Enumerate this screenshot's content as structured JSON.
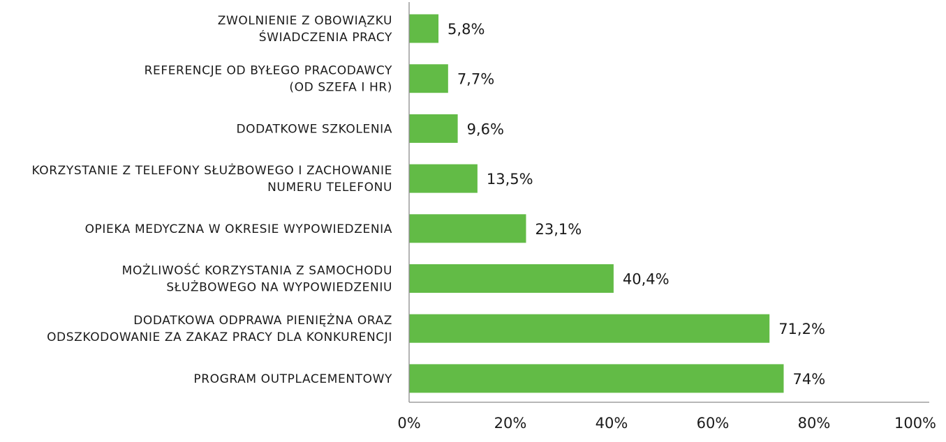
{
  "chart_data": {
    "type": "bar",
    "orientation": "horizontal",
    "categories": [
      [
        "ZWOLNIENIE Z OBOWIĄZKU",
        "ŚWIADCZENIA PRACY"
      ],
      [
        "REFERENCJE OD BYŁEGO PRACODAWCY",
        "(OD SZEFA I HR)"
      ],
      [
        "DODATKOWE SZKOLENIA"
      ],
      [
        "KORZYSTANIE Z TELEFONY SŁUŻBOWEGO I ZACHOWANIE",
        "NUMERU TELEFONU"
      ],
      [
        "OPIEKA MEDYCZNA W OKRESIE WYPOWIEDZENIA"
      ],
      [
        "MOŻLIWOŚĆ KORZYSTANIA Z SAMOCHODU",
        "SŁUŻBOWEGO NA WYPOWIEDZENIU"
      ],
      [
        "DODATKOWA ODPRAWA PIENIĘŻNA ORAZ",
        "ODSZKODOWANIE ZA ZAKAZ PRACY DLA KONKURENCJI"
      ],
      [
        "PROGRAM OUTPLACEMENTOWY"
      ]
    ],
    "values": [
      5.8,
      7.7,
      9.6,
      13.5,
      23.1,
      40.4,
      71.2,
      74
    ],
    "value_labels": [
      "5,8%",
      "7,7%",
      "9,6%",
      "13,5%",
      "23,1%",
      "40,4%",
      "71,2%",
      "74%"
    ],
    "xlim": [
      0,
      100
    ],
    "x_ticks": [
      0,
      20,
      40,
      60,
      80,
      100
    ],
    "x_tick_labels": [
      "0%",
      "20%",
      "40%",
      "60%",
      "80%",
      "100%"
    ],
    "bar_color": "#62bb46",
    "grid": false,
    "legend": "none",
    "title": "",
    "xlabel": "",
    "ylabel": ""
  }
}
